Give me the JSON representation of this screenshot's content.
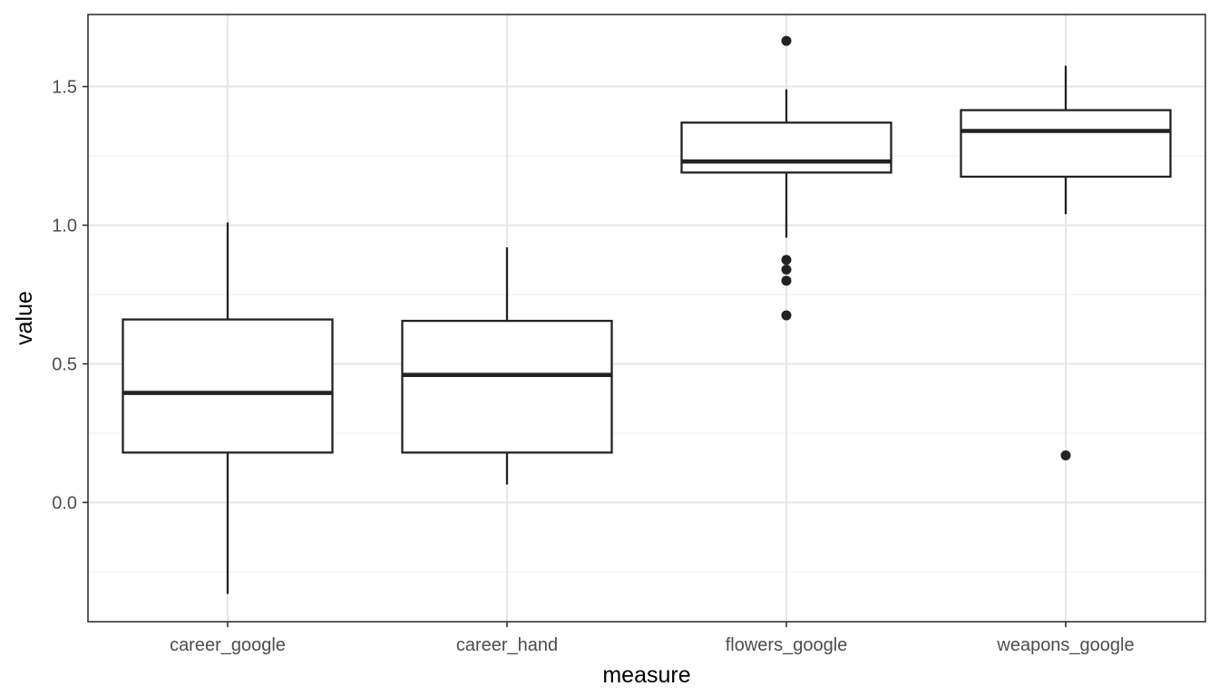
{
  "chart_data": {
    "type": "boxplot",
    "title": "",
    "xlabel": "measure",
    "ylabel": "value",
    "categories": [
      "career_google",
      "career_hand",
      "flowers_google",
      "weapons_google"
    ],
    "boxes": [
      {
        "category": "career_google",
        "whisker_low": -0.33,
        "q1": 0.18,
        "median": 0.395,
        "q3": 0.66,
        "whisker_high": 1.01,
        "outliers": []
      },
      {
        "category": "career_hand",
        "whisker_low": 0.065,
        "q1": 0.18,
        "median": 0.46,
        "q3": 0.655,
        "whisker_high": 0.92,
        "outliers": []
      },
      {
        "category": "flowers_google",
        "whisker_low": 0.955,
        "q1": 1.19,
        "median": 1.23,
        "q3": 1.37,
        "whisker_high": 1.49,
        "outliers": [
          1.665,
          0.875,
          0.84,
          0.8,
          0.675
        ]
      },
      {
        "category": "weapons_google",
        "whisker_low": 1.04,
        "q1": 1.175,
        "median": 1.34,
        "q3": 1.415,
        "whisker_high": 1.575,
        "outliers": [
          0.17
        ]
      }
    ],
    "ylim": [
      -0.43,
      1.76
    ],
    "yticks": [
      0.0,
      0.5,
      1.0,
      1.5
    ],
    "ytick_labels": [
      "0.0",
      "0.5",
      "1.0",
      "1.5"
    ],
    "y_minor_ticks": [
      -0.25,
      0.25,
      0.75,
      1.25
    ],
    "grid": true,
    "legend": "none",
    "colors": {
      "box_fill": "#ffffff",
      "box_stroke": "#222222",
      "outlier": "#222222",
      "grid_major": "#e6e6e6",
      "grid_minor": "#f2f2f2",
      "panel_border": "#333333",
      "tick_text": "#4d4d4d"
    }
  }
}
